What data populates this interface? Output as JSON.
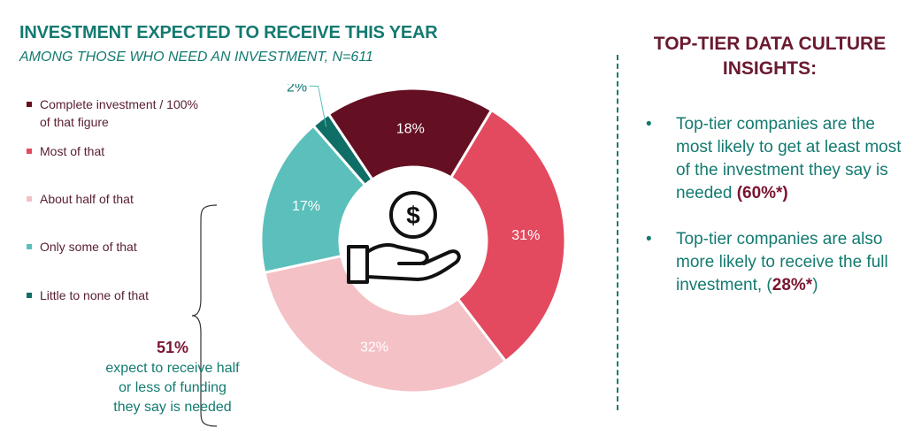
{
  "header": {
    "title": "INVESTMENT EXPECTED TO RECEIVE THIS YEAR",
    "subtitle": "AMONG THOSE WHO NEED AN INVESTMENT, N=611"
  },
  "chart_data": {
    "type": "pie",
    "categories": [
      "Complete investment / 100% of that figure",
      "Most of that",
      "About half of that",
      "Only some of that",
      "Little to none of that"
    ],
    "values": [
      18,
      31,
      32,
      17,
      2
    ],
    "data_labels": [
      "18%",
      "31%",
      "32%",
      "17%",
      "2%"
    ],
    "colors": [
      "#650f22",
      "#e34a5f",
      "#f4c1c6",
      "#5bbfbb",
      "#0f6e66"
    ],
    "legend_position": "left",
    "center_icon": "hand-holding-dollar-icon"
  },
  "callout": {
    "value": "51%",
    "text_lines": [
      "expect to receive half",
      "or less of funding",
      "they say is needed"
    ]
  },
  "insights": {
    "title_line1": "TOP-TIER DATA CULTURE",
    "title_line2": "INSIGHTS:",
    "bullet_glyph": "•",
    "bullets": [
      {
        "text": "Top-tier companies are the most likely to get at least most of the investment they say is needed ",
        "highlight": "(60%*)"
      },
      {
        "text": "Top-tier companies are also more likely to receive the full investment, (",
        "highlight": "28%*",
        "suffix": ")"
      }
    ]
  }
}
